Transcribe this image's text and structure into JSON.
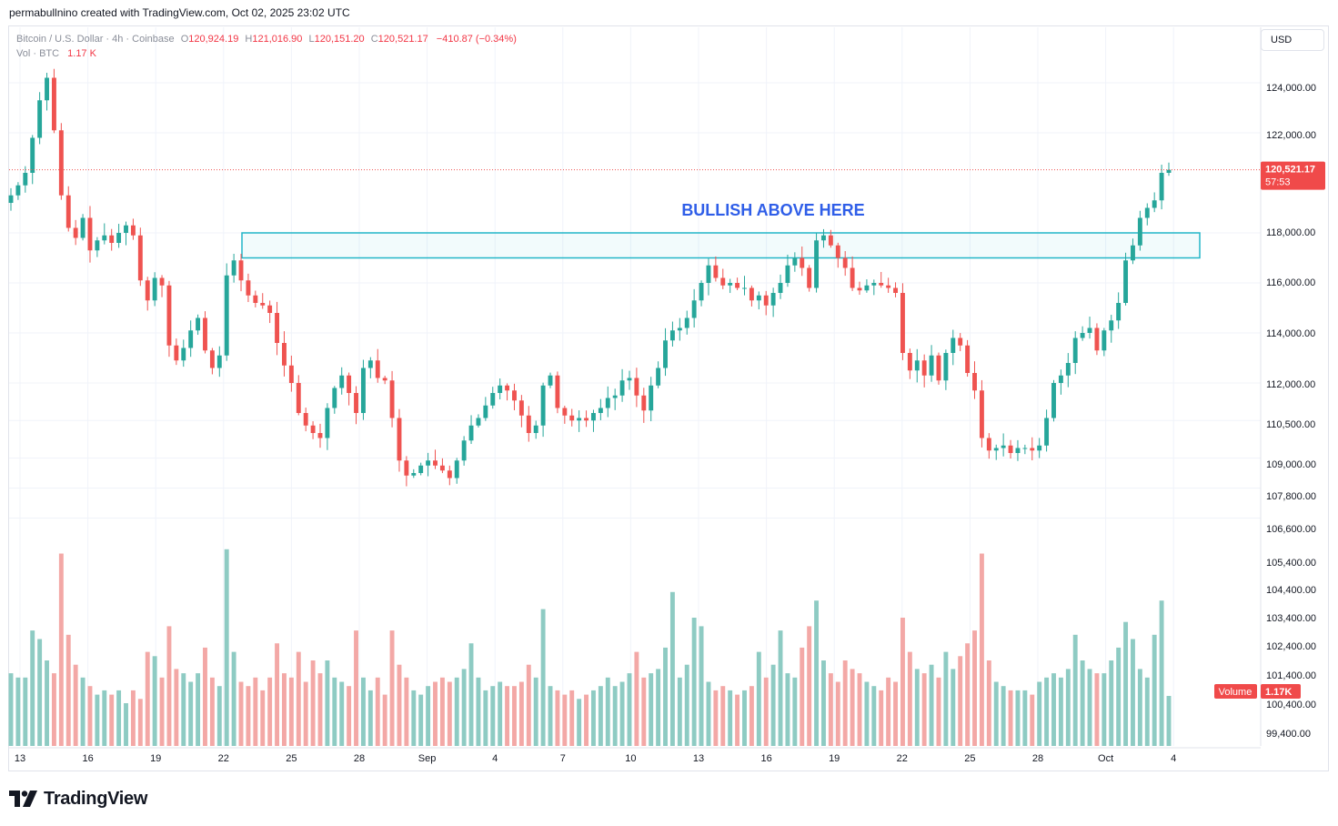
{
  "header": {
    "note": "permabullnino created with TradingView.com, Oct 02, 2025 23:02 UTC"
  },
  "legend": {
    "symbol": "Bitcoin / U.S. Dollar · 4h · Coinbase",
    "open_label": "O",
    "open": "120,924.19",
    "high_label": "H",
    "high": "121,016.90",
    "low_label": "L",
    "low": "120,151.20",
    "close_label": "C",
    "close": "120,521.17",
    "change": "−410.87 (−0.34%)",
    "volume_label": "Vol · BTC",
    "volume": "1.17 K"
  },
  "currency": "USD",
  "last_price_badge": {
    "price": "120,521.17",
    "countdown": "57:53"
  },
  "volume_badge": {
    "label": "Volume",
    "value": "1.17K"
  },
  "annotation": {
    "text": "BULLISH ABOVE HERE",
    "zone_low": 117000,
    "zone_high": 118000,
    "color": "#2f5ee8"
  },
  "brand": {
    "name": "TradingView"
  },
  "colors": {
    "up": "#26a69a",
    "down": "#ef5350",
    "up_vol": "#8ecbc3",
    "down_vol": "#f3a8a6",
    "zone": "#22b5c8",
    "grid": "#f0f3fa"
  },
  "chart_data": {
    "type": "candlestick",
    "title": "Bitcoin / U.S. Dollar · 4h · Coinbase",
    "price_axis_ticks": [
      {
        "label": "124,000.00",
        "value": 124000
      },
      {
        "label": "122,000.00",
        "value": 122000
      },
      {
        "label": "118,000.00",
        "value": 118000
      },
      {
        "label": "116,000.00",
        "value": 116000
      },
      {
        "label": "114,000.00",
        "value": 114000
      },
      {
        "label": "112,000.00",
        "value": 112000
      },
      {
        "label": "110,500.00",
        "value": 110500
      },
      {
        "label": "109,000.00",
        "value": 109000
      },
      {
        "label": "107,800.00",
        "value": 107800
      },
      {
        "label": "106,600.00",
        "value": 106600
      },
      {
        "label": "105,400.00",
        "value": 105400
      },
      {
        "label": "104,400.00",
        "value": 104400
      },
      {
        "label": "103,400.00",
        "value": 103400
      },
      {
        "label": "102,400.00",
        "value": 102400
      },
      {
        "label": "101,400.00",
        "value": 101400
      },
      {
        "label": "100,400.00",
        "value": 100400
      },
      {
        "label": "99,400.00",
        "value": 99400
      }
    ],
    "date_axis_ticks": [
      "13",
      "16",
      "19",
      "22",
      "25",
      "28",
      "Sep",
      "4",
      "7",
      "10",
      "13",
      "16",
      "19",
      "22",
      "25",
      "28",
      "Oct",
      "4"
    ],
    "last_price": 120521.17,
    "closes": [
      119500,
      119900,
      120400,
      121800,
      123300,
      124200,
      122100,
      119500,
      118200,
      117800,
      118600,
      117300,
      117700,
      117900,
      117600,
      118000,
      118300,
      117900,
      116100,
      115300,
      116200,
      115900,
      113500,
      112900,
      113400,
      114100,
      114600,
      113300,
      112600,
      113100,
      116300,
      116900,
      116100,
      115500,
      115200,
      115100,
      114800,
      113600,
      112700,
      112000,
      110800,
      110300,
      110000,
      109800,
      111000,
      111800,
      112300,
      111600,
      110800,
      112600,
      112900,
      112200,
      112100,
      110600,
      108900,
      108300,
      108400,
      108700,
      108900,
      108700,
      108500,
      108200,
      108900,
      109700,
      110300,
      110600,
      111100,
      111600,
      111900,
      111700,
      111300,
      110700,
      110000,
      110300,
      111900,
      112300,
      111000,
      110700,
      110500,
      110600,
      110500,
      110800,
      111000,
      111400,
      111500,
      112100,
      112200,
      111500,
      110900,
      111900,
      112600,
      113700,
      114100,
      114200,
      114600,
      115300,
      116000,
      116700,
      116200,
      115900,
      116000,
      115800,
      115800,
      115300,
      115500,
      115100,
      115600,
      116000,
      116700,
      117000,
      116600,
      115800,
      117700,
      117900,
      117500,
      117000,
      116600,
      115800,
      115700,
      115900,
      116000,
      115900,
      115800,
      115600,
      113200,
      112500,
      112900,
      112300,
      113100,
      112100,
      113200,
      113800,
      113500,
      112400,
      111700,
      109800,
      109300,
      109400,
      109500,
      109200,
      109400,
      109400,
      109300,
      109500,
      110600,
      112000,
      112300,
      112800,
      113800,
      114000,
      114200,
      113300,
      114100,
      114500,
      115200,
      116900,
      117500,
      118600,
      119000,
      119300,
      120400,
      120521.17
    ],
    "volumes_k": [
      1.7,
      1.6,
      1.6,
      2.7,
      2.5,
      2.0,
      1.7,
      4.5,
      2.6,
      1.9,
      1.6,
      1.4,
      1.2,
      1.3,
      1.2,
      1.3,
      1.0,
      1.3,
      1.1,
      2.2,
      2.1,
      1.6,
      2.8,
      1.8,
      1.7,
      1.5,
      1.7,
      2.3,
      1.6,
      1.4,
      4.6,
      2.2,
      1.5,
      1.4,
      1.6,
      1.3,
      1.6,
      2.4,
      1.7,
      1.6,
      2.2,
      1.5,
      2.0,
      1.7,
      2.0,
      1.6,
      1.5,
      1.4,
      2.7,
      1.6,
      1.3,
      1.6,
      1.2,
      2.7,
      1.9,
      1.6,
      1.3,
      1.2,
      1.4,
      1.5,
      1.6,
      1.5,
      1.6,
      1.8,
      2.4,
      1.6,
      1.3,
      1.4,
      1.5,
      1.4,
      1.4,
      1.5,
      1.9,
      1.6,
      3.2,
      1.4,
      1.3,
      1.2,
      1.3,
      1.1,
      1.2,
      1.3,
      1.4,
      1.6,
      1.4,
      1.5,
      1.7,
      2.2,
      1.6,
      1.7,
      1.8,
      2.3,
      3.6,
      1.6,
      1.9,
      3.0,
      2.8,
      1.5,
      1.3,
      1.4,
      1.3,
      1.2,
      1.3,
      1.4,
      2.2,
      1.6,
      1.9,
      2.7,
      1.7,
      1.6,
      2.3,
      2.8,
      3.4,
      2.0,
      1.7,
      1.5,
      2.0,
      1.8,
      1.7,
      1.5,
      1.4,
      1.3,
      1.6,
      1.5,
      3.0,
      2.2,
      1.8,
      1.7,
      1.9,
      1.6,
      2.2,
      1.8,
      2.1,
      2.4,
      2.7,
      4.5,
      2.0,
      1.5,
      1.4,
      1.3,
      1.3,
      1.3,
      1.2,
      1.5,
      1.6,
      1.7,
      1.6,
      1.8,
      2.6,
      2.0,
      1.8,
      1.7,
      1.7,
      2.0,
      2.3,
      2.9,
      2.5,
      1.8,
      1.6,
      2.6,
      3.4,
      1.17
    ]
  }
}
